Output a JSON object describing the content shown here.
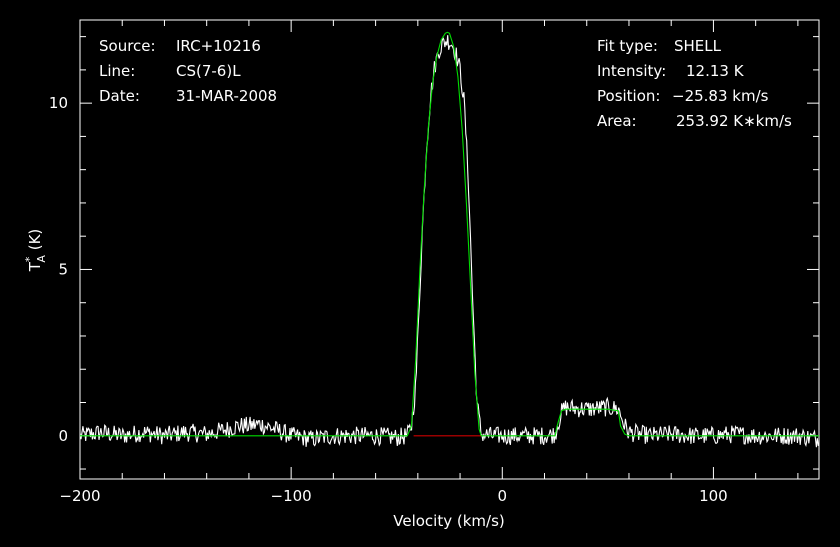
{
  "colors": {
    "background": "#000000",
    "axes": "#ffffff",
    "spectrum": "#ffffff",
    "fit": "#00dd00",
    "baseline": "#cc0000"
  },
  "info_left": {
    "source_label": "Source:",
    "source_value": "IRC+10216",
    "line_label": "Line:",
    "line_value": "CS(7-6)L",
    "date_label": "Date:",
    "date_value": "31-MAR-2008"
  },
  "info_right": {
    "fit_type_label": "Fit type:",
    "fit_type_value": "SHELL",
    "intensity_label": "Intensity:",
    "intensity_value": "12.13 K",
    "position_label": "Position:",
    "position_value": "−25.83 km/s",
    "area_label": "Area:",
    "area_value": "253.92 K∗km/s"
  },
  "chart_data": {
    "type": "line",
    "xlabel": "Velocity (km/s)",
    "ylabel": "T*A (K)",
    "xlim": [
      -200,
      150
    ],
    "ylim": [
      -1.3,
      12.5
    ],
    "xticks": [
      -200,
      -100,
      0,
      100
    ],
    "xtick_labels": [
      "−200",
      "−100",
      "0",
      "100"
    ],
    "yticks": [
      0,
      5,
      10
    ],
    "ytick_labels": [
      "0",
      "5",
      "10"
    ],
    "grid": false,
    "series": [
      {
        "role": "spectrum",
        "x": [
          -200,
          -190,
          -180,
          -170,
          -160,
          -150,
          -140,
          -130,
          -125,
          -120,
          -115,
          -110,
          -100,
          -90,
          -80,
          -70,
          -60,
          -50,
          -45,
          -43,
          -41,
          -40,
          -38,
          -36,
          -34,
          -32,
          -30,
          -28,
          -26,
          -24,
          -22,
          -20,
          -18,
          -16,
          -14,
          -12,
          -10,
          -5,
          0,
          10,
          20,
          25,
          28,
          30,
          40,
          50,
          55,
          58,
          60,
          70,
          80,
          90,
          100,
          110,
          120,
          130,
          140,
          150
        ],
        "y": [
          0,
          0.1,
          0,
          0.1,
          0,
          0.1,
          0.05,
          0.2,
          0.3,
          0.3,
          0.35,
          0.25,
          0,
          -0.1,
          0,
          0,
          0,
          -0.05,
          0,
          0.3,
          1.5,
          3.0,
          6.0,
          8.6,
          10.2,
          11.1,
          11.6,
          11.8,
          11.9,
          11.8,
          11.5,
          11.0,
          10.0,
          7.6,
          4.0,
          1.0,
          0.05,
          0,
          0,
          0,
          0,
          0.05,
          0.7,
          0.85,
          0.8,
          0.85,
          0.8,
          0.3,
          0.1,
          0,
          0.05,
          0,
          0,
          0.05,
          0,
          0,
          0,
          -0.1
        ]
      },
      {
        "role": "fit",
        "x": [
          -200,
          -60,
          -45,
          -43,
          -41,
          -39,
          -37,
          -35,
          -33,
          -31,
          -29,
          -27,
          -26,
          -25,
          -23,
          -21,
          -19,
          -17,
          -15,
          -13,
          -11,
          -10,
          -5,
          0,
          10,
          20,
          25,
          26,
          28,
          30,
          40,
          50,
          55,
          56,
          58,
          60,
          100,
          150
        ],
        "y": [
          0,
          0,
          0,
          0.3,
          2.3,
          5.0,
          7.4,
          9.3,
          10.6,
          11.4,
          11.9,
          12.1,
          12.13,
          12.1,
          11.7,
          10.8,
          9.2,
          7.0,
          4.5,
          1.9,
          0.2,
          0,
          0,
          0,
          0,
          0,
          0,
          0.3,
          0.75,
          0.8,
          0.8,
          0.8,
          0.75,
          0.3,
          0.05,
          0,
          0,
          0
        ]
      },
      {
        "role": "baseline",
        "x": [
          -42,
          -10
        ],
        "y": [
          0,
          0
        ]
      }
    ]
  }
}
